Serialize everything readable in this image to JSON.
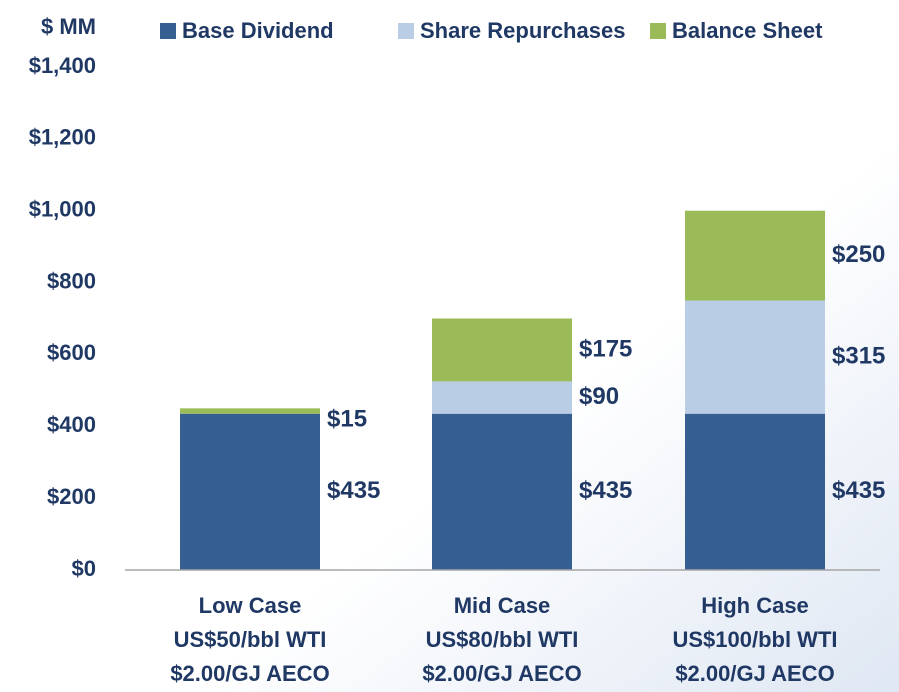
{
  "chart_data": {
    "type": "bar",
    "stacked": true,
    "y_label": "$ MM",
    "categories": [
      [
        "Low Case",
        "US$50/bbl WTI",
        "$2.00/GJ AECO"
      ],
      [
        "Mid Case",
        "US$80/bbl WTI",
        "$2.00/GJ AECO"
      ],
      [
        "High Case",
        "US$100/bbl WTI",
        "$2.00/GJ AECO"
      ]
    ],
    "series": [
      {
        "name": "Base Dividend",
        "color": "#365f91",
        "values": [
          435,
          435,
          435
        ],
        "value_labels": [
          "$435",
          "$435",
          "$435"
        ]
      },
      {
        "name": "Share Repurchases",
        "color": "#b9cde5",
        "values": [
          null,
          90,
          315
        ],
        "value_labels": [
          null,
          "$90",
          "$315"
        ]
      },
      {
        "name": "Balance Sheet",
        "color": "#9bbb59",
        "values": [
          15,
          175,
          250
        ],
        "value_labels": [
          "$15",
          "$175",
          "$250"
        ]
      }
    ],
    "ylim": [
      0,
      1400
    ],
    "yticks": [
      {
        "value": 0,
        "label": "$0"
      },
      {
        "value": 200,
        "label": "$200"
      },
      {
        "value": 400,
        "label": "$400"
      },
      {
        "value": 600,
        "label": "$600"
      },
      {
        "value": 800,
        "label": "$800"
      },
      {
        "value": 1000,
        "label": "$1,000"
      },
      {
        "value": 1200,
        "label": "$1,200"
      },
      {
        "value": 1400,
        "label": "$1,400"
      }
    ],
    "grid": false
  }
}
